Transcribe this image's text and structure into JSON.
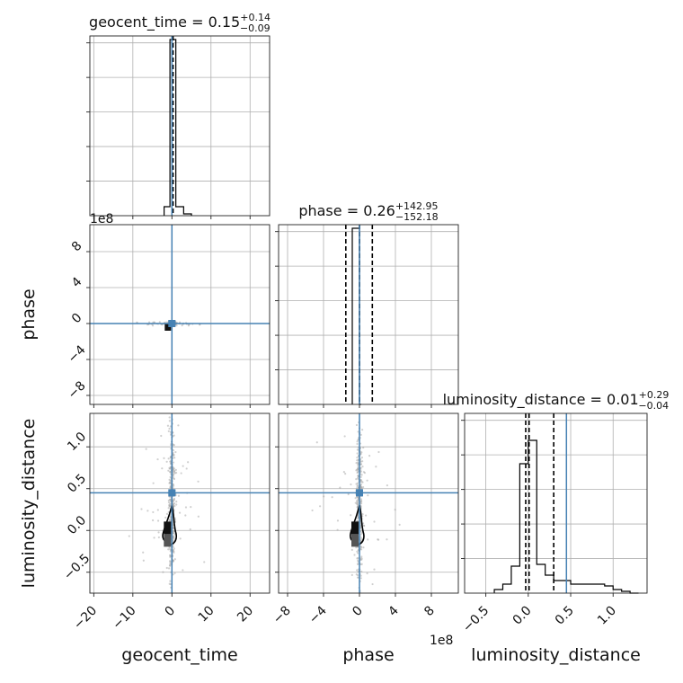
{
  "chart_data": {
    "type": "corner",
    "parameters": [
      "geocent_time",
      "phase",
      "luminosity_distance"
    ],
    "titles": [
      {
        "name": "geocent_time",
        "median": "0.15",
        "plus": "+0.14",
        "minus": "−0.09"
      },
      {
        "name": "phase",
        "median": "0.26",
        "plus": "+142.95",
        "minus": "−152.18"
      },
      {
        "name": "luminosity_distance",
        "median": "0.01",
        "plus": "+0.29",
        "minus": "−0.04"
      }
    ],
    "ranges": {
      "geocent_time": [
        -21,
        25
      ],
      "phase": [
        -900000000,
        1100000000
      ],
      "luminosity_distance": [
        -0.75,
        1.4
      ]
    },
    "ticks": {
      "geocent_time": [
        -20,
        -10,
        0,
        10,
        20
      ],
      "phase": [
        -800000000,
        -400000000,
        0,
        400000000,
        800000000
      ],
      "luminosity_distance": [
        -0.5,
        0.0,
        0.5,
        1.0
      ]
    },
    "tick_labels": {
      "geocent_time": [
        "−20",
        "−10",
        "0",
        "10",
        "20"
      ],
      "phase": [
        "−8",
        "−4",
        "0",
        "4",
        "8"
      ],
      "luminosity_distance": [
        "−0.5",
        "0.0",
        "0.5",
        "1.0"
      ]
    },
    "offset_text": "1e8",
    "truths": {
      "geocent_time": 0.0,
      "phase": 0.0,
      "luminosity_distance": 0.45
    },
    "quantiles": {
      "geocent_time": [
        0.06,
        0.15,
        0.29
      ],
      "phase": [
        -152000000,
        260000,
        143000000
      ],
      "luminosity_distance": [
        -0.03,
        0.01,
        0.3
      ]
    },
    "histograms": {
      "geocent_time": {
        "edges": [
          -2,
          -0.5,
          1,
          3,
          5
        ],
        "heights": [
          0.05,
          0.98,
          0.05,
          0.01
        ]
      },
      "phase": {
        "edges": [
          -80000000,
          0,
          20000000
        ],
        "heights": [
          0.98,
          0.0
        ]
      },
      "luminosity_distance": {
        "edges": [
          -0.4,
          -0.3,
          -0.2,
          -0.1,
          0.0,
          0.1,
          0.2,
          0.3,
          0.4,
          0.5,
          0.6,
          0.7,
          0.8,
          0.9,
          1.0,
          1.1,
          1.2,
          1.3
        ],
        "heights": [
          0.02,
          0.05,
          0.15,
          0.72,
          0.85,
          0.16,
          0.1,
          0.07,
          0.07,
          0.05,
          0.05,
          0.05,
          0.05,
          0.04,
          0.02,
          0.01,
          0.0
        ]
      }
    },
    "grid": true,
    "colors": {
      "truth": "#4682b4",
      "hist": "#000000",
      "samples": "#a9a9a9"
    }
  }
}
